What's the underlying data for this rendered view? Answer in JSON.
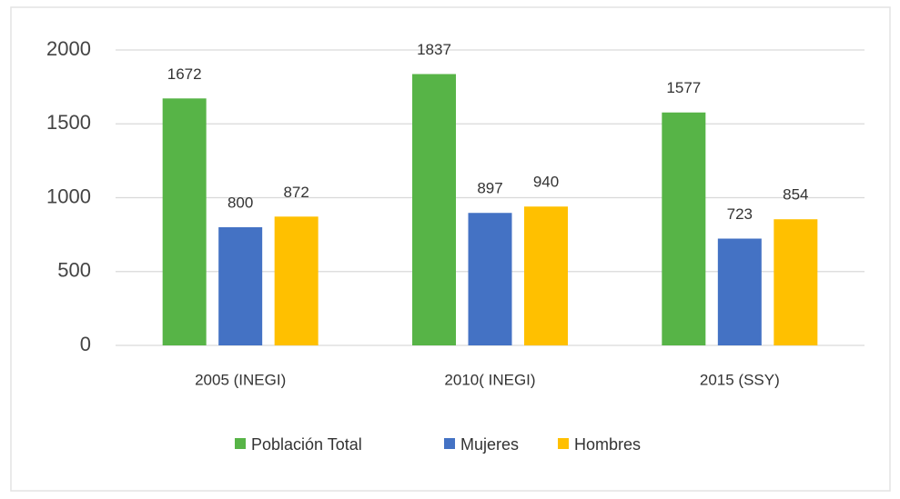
{
  "chart_data": {
    "type": "bar",
    "categories": [
      "2005 (INEGI)",
      "2010( INEGI)",
      "2015 (SSY)"
    ],
    "series": [
      {
        "name": "Población Total",
        "color": "#57b447",
        "values": [
          1672,
          1837,
          1577
        ]
      },
      {
        "name": "Mujeres",
        "color": "#4472c4",
        "values": [
          800,
          897,
          723
        ]
      },
      {
        "name": "Hombres",
        "color": "#ffc000",
        "values": [
          872,
          940,
          854
        ]
      }
    ],
    "ylim": [
      0,
      2000
    ],
    "yticks": [
      0,
      500,
      1000,
      1500,
      2000
    ],
    "grid": true,
    "legend": "bottom"
  }
}
